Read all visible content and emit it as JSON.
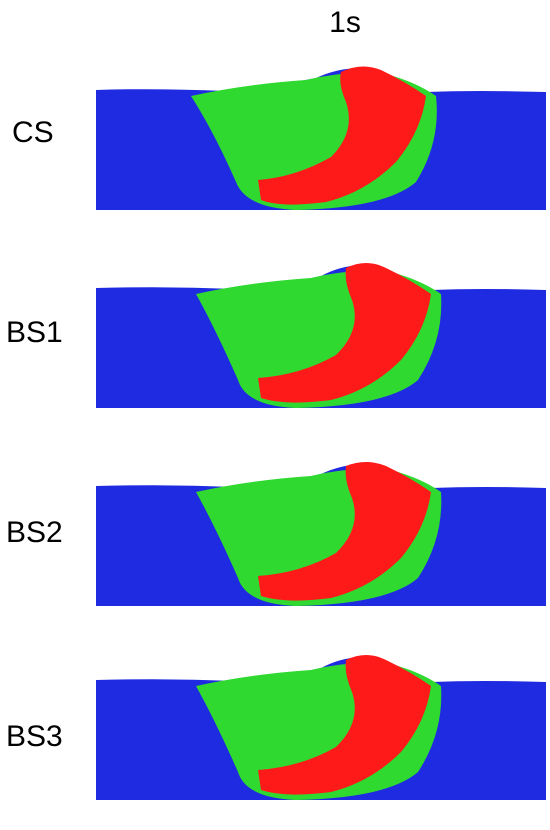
{
  "figure": {
    "time_label": "1s",
    "colors": {
      "bed": "#1f2be0",
      "disturbed": "#2fd92f",
      "high": "#ff1a1a"
    },
    "panels": [
      {
        "label": "CS"
      },
      {
        "label": "BS1"
      },
      {
        "label": "BS2"
      },
      {
        "label": "BS3"
      }
    ]
  }
}
